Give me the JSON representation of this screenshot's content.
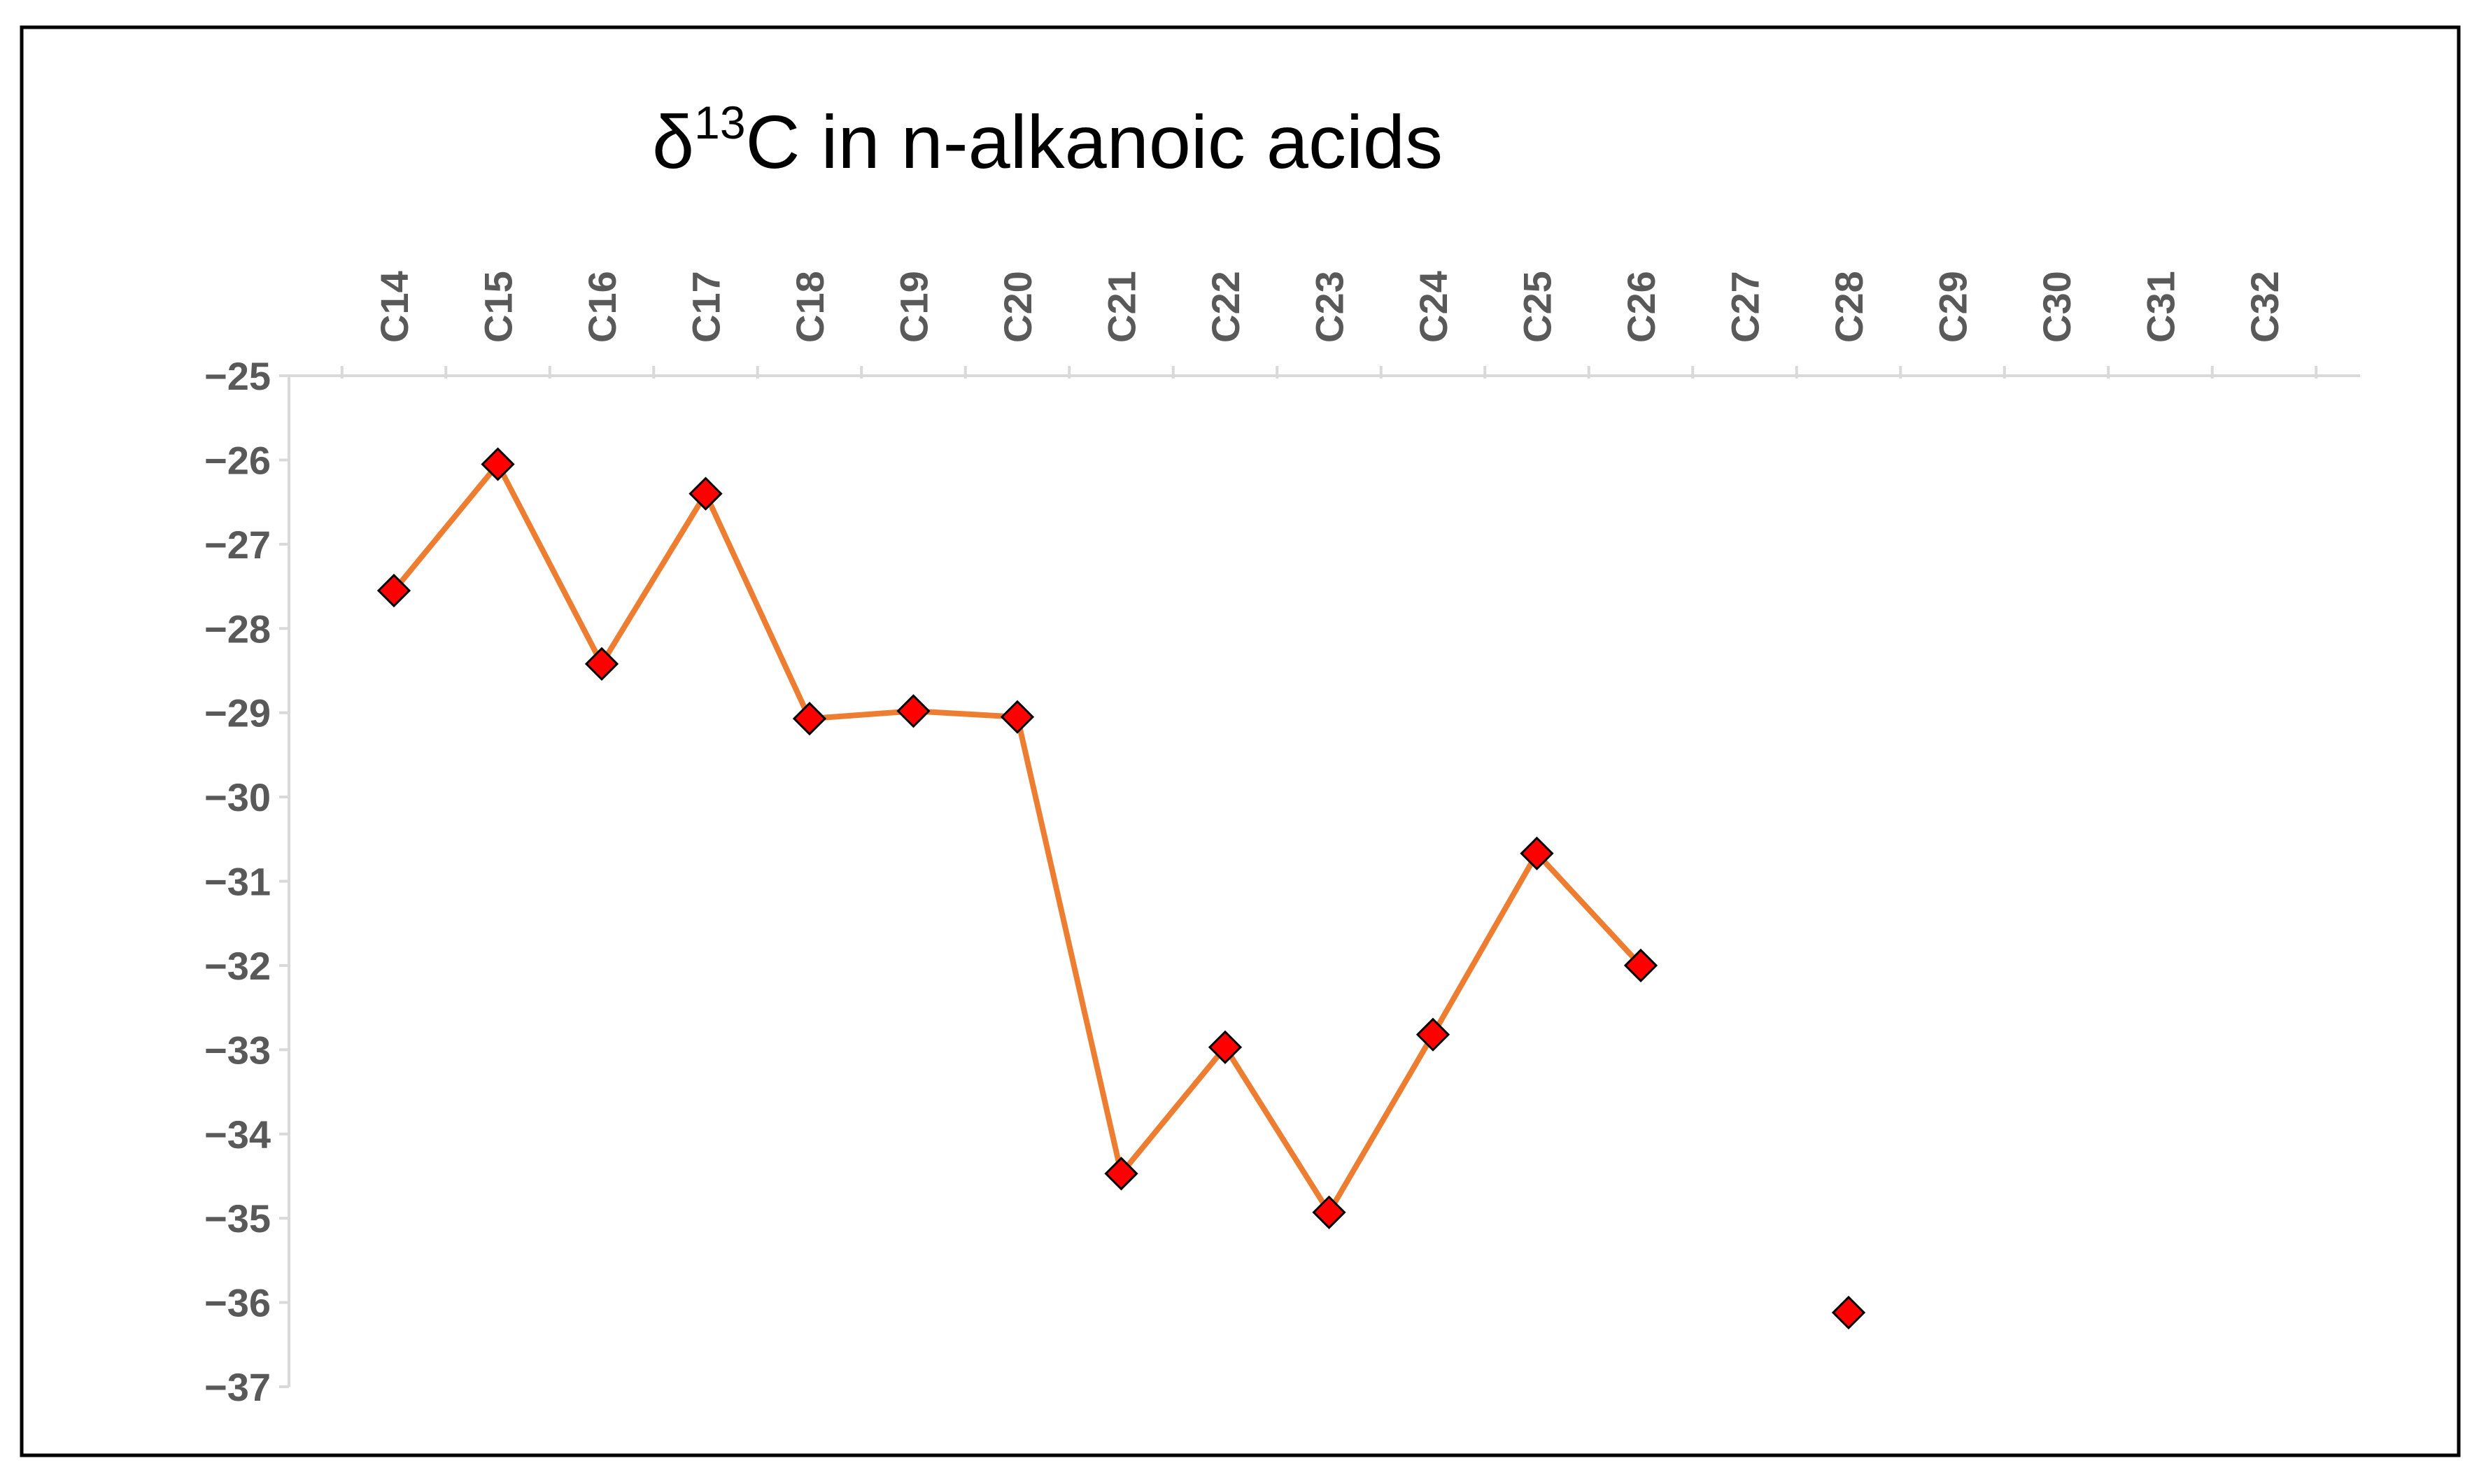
{
  "chart_data": {
    "type": "line",
    "title": {
      "prefix": "δ",
      "superscript": "13",
      "suffix": "C in n-alkanoic acids"
    },
    "xlabel": "",
    "ylabel": "",
    "categories": [
      "C14",
      "C15",
      "C16",
      "C17",
      "C18",
      "C19",
      "C20",
      "C21",
      "C22",
      "C23",
      "C24",
      "C25",
      "C26",
      "C27",
      "C28",
      "C29",
      "C30",
      "C31",
      "C32"
    ],
    "ylim": [
      -37,
      -25
    ],
    "yticks": [
      -25,
      -26,
      -27,
      -28,
      -29,
      -30,
      -31,
      -32,
      -33,
      -34,
      -35,
      -36,
      -37
    ],
    "ytick_labels": [
      "−25",
      "−26",
      "−27",
      "−28",
      "−29",
      "−30",
      "−31",
      "−32",
      "−33",
      "−34",
      "−35",
      "−36",
      "−37"
    ],
    "x_axis_position": "top",
    "grid": false,
    "legend": "none",
    "series": [
      {
        "values": [
          -27.55,
          -26.05,
          -28.42,
          -26.4,
          -29.07,
          -28.98,
          -29.05,
          -34.47,
          -32.97,
          -34.93,
          -32.82,
          -30.67,
          -32.0,
          null,
          -36.12,
          null,
          null,
          null,
          null
        ],
        "line_color": "#ED7D31",
        "marker": "diamond",
        "marker_color": "#FF0000"
      }
    ],
    "colors": {
      "axis": "#D9D9D9",
      "tick_label": "#595959",
      "border": "#000000"
    }
  }
}
